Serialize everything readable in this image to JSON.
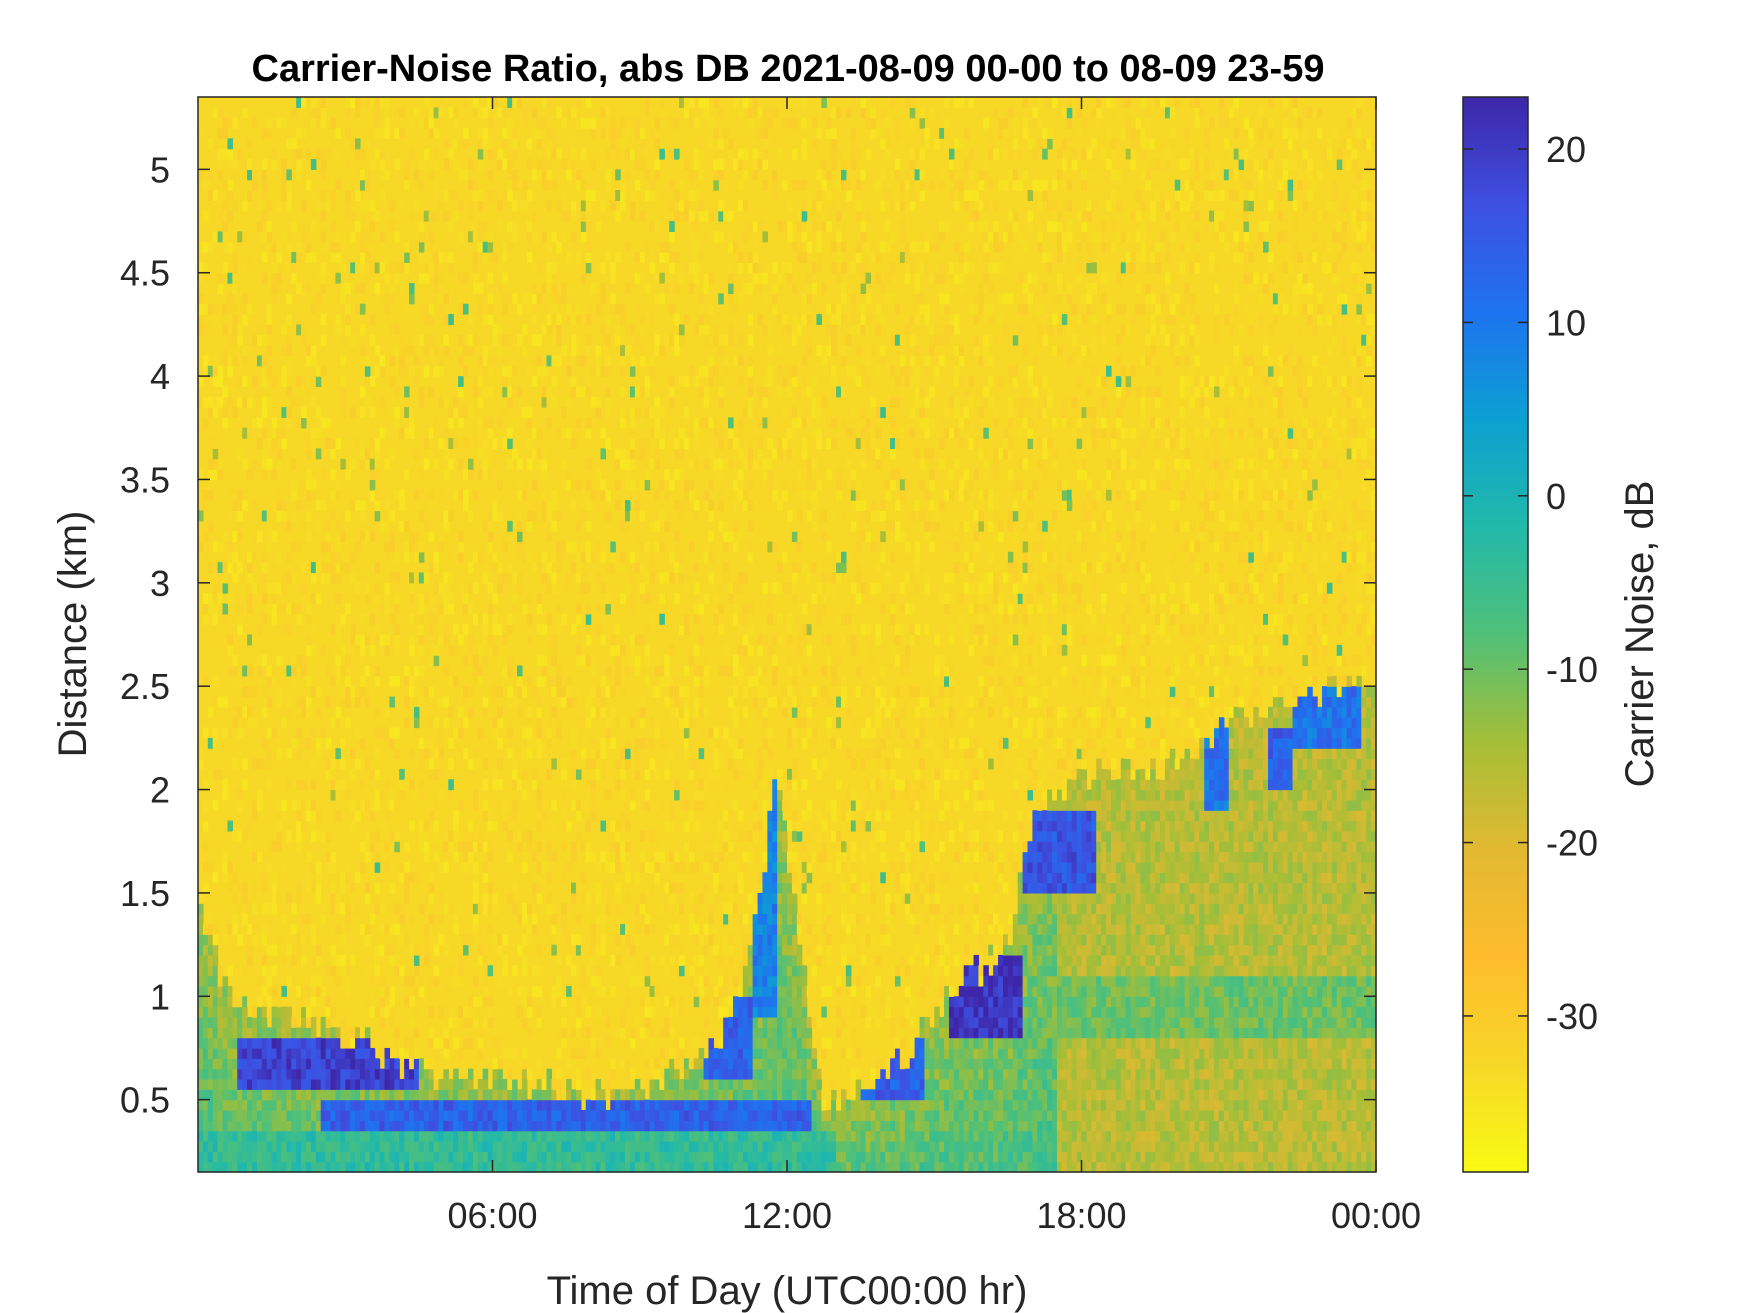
{
  "chart_data": {
    "type": "heatmap",
    "title": "Carrier-Noise Ratio, abs DB 2021-08-09 00-00 to 08-09 23-59",
    "xlabel": "Time of Day (UTC00:00 hr)",
    "ylabel": "Distance (km)",
    "colorbar_label": "Carrier Noise, dB",
    "xlim": [
      0,
      24
    ],
    "ylim": [
      0.15,
      5.35
    ],
    "clim": [
      -39,
      23
    ],
    "x_ticks": [
      6,
      12,
      18,
      24
    ],
    "x_tick_labels": [
      "06:00",
      "12:00",
      "18:00",
      "00:00"
    ],
    "y_ticks": [
      0.5,
      1,
      1.5,
      2,
      2.5,
      3,
      3.5,
      4,
      4.5,
      5
    ],
    "y_tick_labels": [
      "0.5",
      "1",
      "1.5",
      "2",
      "2.5",
      "3",
      "3.5",
      "4",
      "4.5",
      "5"
    ],
    "colorbar_ticks": [
      20,
      10,
      0,
      -10,
      -20,
      -30
    ],
    "colorbar_tick_labels": [
      "20",
      "10",
      "0",
      "-10",
      "-20",
      "-30"
    ],
    "colormap": "parula",
    "background_value_db": -33,
    "signal_top_km": [
      {
        "t": 0.0,
        "km": 1.45
      },
      {
        "t": 0.5,
        "km": 1.05
      },
      {
        "t": 1.0,
        "km": 0.95
      },
      {
        "t": 2.5,
        "km": 0.85
      },
      {
        "t": 3.5,
        "km": 0.75
      },
      {
        "t": 4.5,
        "km": 0.65
      },
      {
        "t": 5.5,
        "km": 0.6
      },
      {
        "t": 6.5,
        "km": 0.6
      },
      {
        "t": 7.5,
        "km": 0.55
      },
      {
        "t": 8.5,
        "km": 0.5
      },
      {
        "t": 9.5,
        "km": 0.6
      },
      {
        "t": 10.5,
        "km": 0.75
      },
      {
        "t": 11.0,
        "km": 0.95
      },
      {
        "t": 11.5,
        "km": 1.6
      },
      {
        "t": 11.8,
        "km": 2.1
      },
      {
        "t": 12.2,
        "km": 1.4
      },
      {
        "t": 12.7,
        "km": 0.5
      },
      {
        "t": 13.5,
        "km": 0.55
      },
      {
        "t": 14.5,
        "km": 0.75
      },
      {
        "t": 15.2,
        "km": 1.0
      },
      {
        "t": 15.8,
        "km": 1.1
      },
      {
        "t": 16.5,
        "km": 1.25
      },
      {
        "t": 16.9,
        "km": 1.8
      },
      {
        "t": 17.5,
        "km": 2.0
      },
      {
        "t": 18.5,
        "km": 2.1
      },
      {
        "t": 20.0,
        "km": 2.15
      },
      {
        "t": 21.0,
        "km": 2.35
      },
      {
        "t": 22.0,
        "km": 2.4
      },
      {
        "t": 23.5,
        "km": 2.5
      },
      {
        "t": 24.0,
        "km": 2.55
      }
    ],
    "strong_return_bands": [
      {
        "t0": 0.8,
        "t1": 4.5,
        "km0": 0.55,
        "km1": 0.8,
        "db": 19
      },
      {
        "t0": 2.5,
        "t1": 12.5,
        "km0": 0.35,
        "km1": 0.5,
        "db": 14
      },
      {
        "t0": 0.0,
        "t1": 13.0,
        "km0": 0.15,
        "km1": 0.35,
        "db": -4
      },
      {
        "t0": 10.3,
        "t1": 11.3,
        "km0": 0.6,
        "km1": 1.0,
        "db": 14
      },
      {
        "t0": 11.3,
        "t1": 11.8,
        "km0": 0.9,
        "km1": 2.1,
        "db": 9
      },
      {
        "t0": 13.5,
        "t1": 14.8,
        "km0": 0.5,
        "km1": 0.8,
        "db": 14
      },
      {
        "t0": 15.3,
        "t1": 16.8,
        "km0": 0.8,
        "km1": 1.2,
        "db": 21
      },
      {
        "t0": 16.8,
        "t1": 18.3,
        "km0": 1.5,
        "km1": 1.9,
        "db": 16
      },
      {
        "t0": 20.5,
        "t1": 21.0,
        "km0": 1.9,
        "km1": 2.4,
        "db": 11
      },
      {
        "t0": 21.8,
        "t1": 22.3,
        "km0": 2.0,
        "km1": 2.3,
        "db": 14
      },
      {
        "t0": 22.3,
        "t1": 23.7,
        "km0": 2.2,
        "km1": 2.5,
        "db": 11
      }
    ]
  }
}
